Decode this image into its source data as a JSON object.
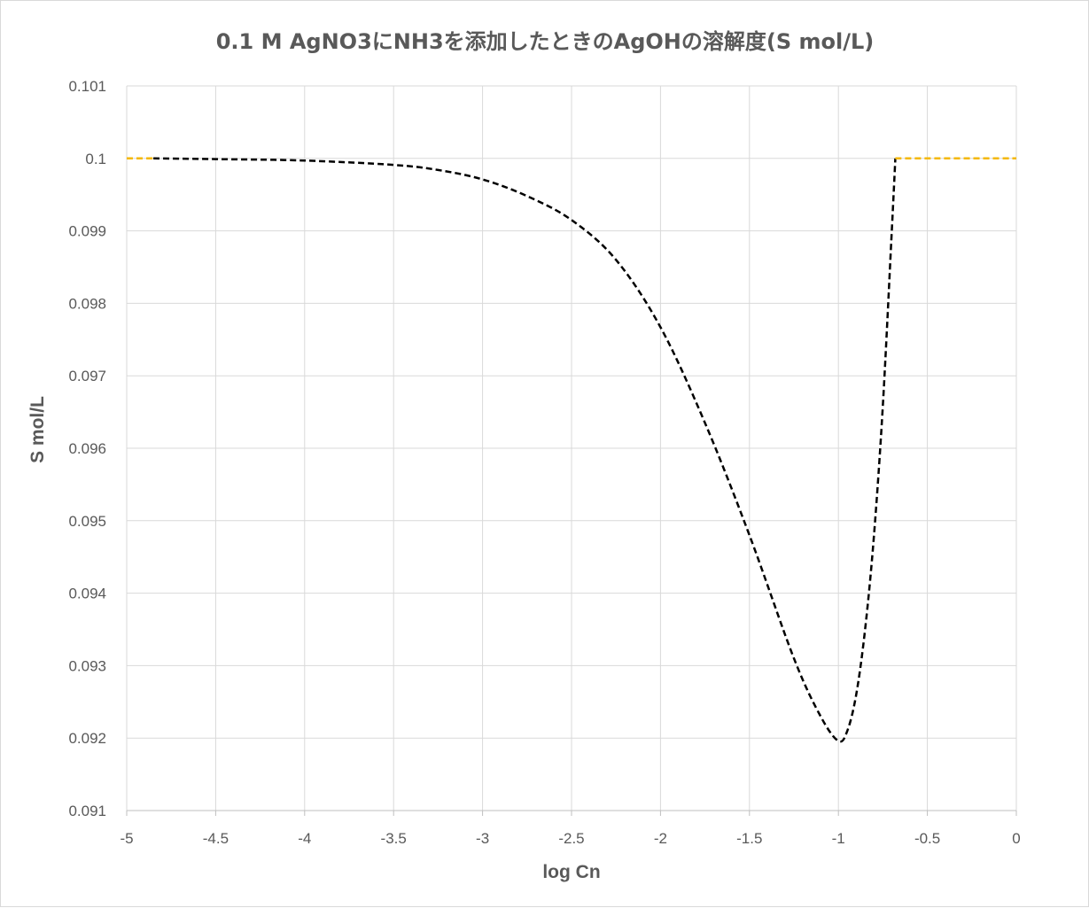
{
  "chart_data": {
    "type": "line",
    "title": "0.1 M AgNO3にNH3を添加したときのAgOHの溶解度(S mol/L)",
    "xlabel": "log Cn",
    "ylabel": "S mol/L",
    "xlim": [
      -5,
      0
    ],
    "ylim": [
      0.091,
      0.101
    ],
    "x_ticks": [
      -5,
      -4.5,
      -4,
      -3.5,
      -3,
      -2.5,
      -2,
      -1.5,
      -1,
      -0.5,
      0
    ],
    "x_tick_labels": [
      "-5",
      "-4.5",
      "-4",
      "-3.5",
      "-3",
      "-2.5",
      "-2",
      "-1.5",
      "-1",
      "-0.5",
      "0"
    ],
    "y_ticks": [
      0.091,
      0.092,
      0.093,
      0.094,
      0.095,
      0.096,
      0.097,
      0.098,
      0.099,
      0.1,
      0.101
    ],
    "y_tick_labels": [
      "0.091",
      "0.092",
      "0.093",
      "0.094",
      "0.095",
      "0.096",
      "0.097",
      "0.098",
      "0.099",
      "0.1",
      "0.101"
    ],
    "grid": true,
    "legend": "none",
    "series": [
      {
        "color": "#f5b800",
        "line_style": "dashed",
        "points": [
          [
            -5,
            0.1
          ],
          [
            -4.85,
            0.1
          ]
        ]
      },
      {
        "color": "#000000",
        "line_style": "dashed",
        "points": [
          [
            -4.85,
            0.1
          ],
          [
            -4.5,
            0.09999
          ],
          [
            -4,
            0.09997
          ],
          [
            -3.5,
            0.09991
          ],
          [
            -3.25,
            0.09984
          ],
          [
            -3,
            0.09971
          ],
          [
            -2.75,
            0.09948
          ],
          [
            -2.5,
            0.09915
          ],
          [
            -2.25,
            0.0986
          ],
          [
            -2,
            0.09767
          ],
          [
            -1.75,
            0.09635
          ],
          [
            -1.5,
            0.0948
          ],
          [
            -1.25,
            0.0931
          ],
          [
            -1.1,
            0.0923
          ],
          [
            -1.0,
            0.09196
          ],
          [
            -0.95,
            0.0921
          ],
          [
            -0.9,
            0.0926
          ],
          [
            -0.85,
            0.0935
          ],
          [
            -0.8,
            0.0948
          ],
          [
            -0.75,
            0.0966
          ],
          [
            -0.7,
            0.099
          ],
          [
            -0.68,
            0.1
          ]
        ]
      },
      {
        "color": "#f5b800",
        "line_style": "dashed",
        "points": [
          [
            -0.68,
            0.1
          ],
          [
            0,
            0.1
          ]
        ]
      }
    ]
  }
}
